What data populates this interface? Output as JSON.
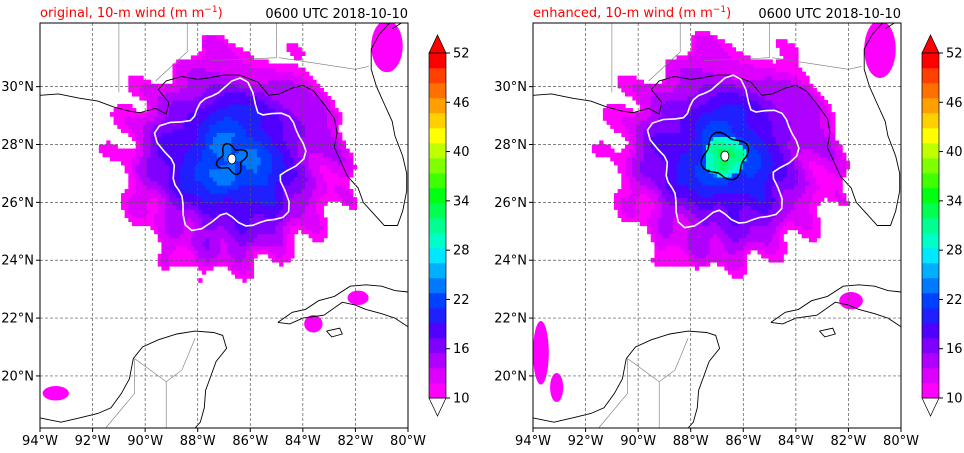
{
  "chart_data": [
    {
      "type": "heatmap",
      "title_left": "original, 10-m wind (m m",
      "title_left_exp": "−1",
      "title_left_close": ")",
      "title_right": "0600 UTC 2018-10-10",
      "title_color": "#ff0000",
      "xlim": [
        -94,
        -80
      ],
      "ylim": [
        18.2,
        32.2
      ],
      "xticks": [
        -94,
        -92,
        -90,
        -88,
        -86,
        -84,
        -82,
        -80
      ],
      "yticks": [
        20,
        22,
        24,
        26,
        28,
        30
      ],
      "xtick_labels": [
        "94°W",
        "92°W",
        "90°W",
        "88°W",
        "86°W",
        "84°W",
        "82°W",
        "80°W"
      ],
      "ytick_labels": [
        "20°N",
        "22°N",
        "24°N",
        "26°N",
        "28°N",
        "30°N"
      ],
      "grid": true,
      "storm_center": [
        -86.7,
        27.5
      ],
      "contour_white_level": 22,
      "contour_black_level": 34
    },
    {
      "type": "heatmap",
      "title_left": "enhanced, 10-m wind (m m",
      "title_left_exp": "−1",
      "title_left_close": ")",
      "title_right": "0600 UTC 2018-10-10",
      "title_color": "#ff0000",
      "xlim": [
        -94,
        -80
      ],
      "ylim": [
        18.2,
        32.2
      ],
      "xticks": [
        -94,
        -92,
        -90,
        -88,
        -86,
        -84,
        -82,
        -80
      ],
      "yticks": [
        20,
        22,
        24,
        26,
        28,
        30
      ],
      "xtick_labels": [
        "94°W",
        "92°W",
        "90°W",
        "88°W",
        "86°W",
        "84°W",
        "82°W",
        "80°W"
      ],
      "ytick_labels": [
        "20°N",
        "22°N",
        "24°N",
        "26°N",
        "28°N",
        "30°N"
      ],
      "grid": true,
      "storm_center": [
        -86.7,
        27.6
      ],
      "contour_white_level": 22,
      "contour_black_level": 34
    }
  ],
  "colorbar": {
    "min": 10,
    "max": 52,
    "step": 3,
    "tick_labels": [
      "10",
      "16",
      "22",
      "28",
      "34",
      "40",
      "46",
      "52"
    ],
    "colors": [
      "#ff00ff",
      "#dd00ff",
      "#b000ff",
      "#8000ff",
      "#5000ff",
      "#2020ff",
      "#0040ff",
      "#0078ff",
      "#00b0ff",
      "#00e8ff",
      "#00ffc8",
      "#00ff90",
      "#00ff50",
      "#00ff10",
      "#40ff00",
      "#80ff00",
      "#c0ff00",
      "#ffff00",
      "#ffd000",
      "#ffa000",
      "#ff7000",
      "#ff4000",
      "#ff0000"
    ],
    "extend": "both"
  }
}
